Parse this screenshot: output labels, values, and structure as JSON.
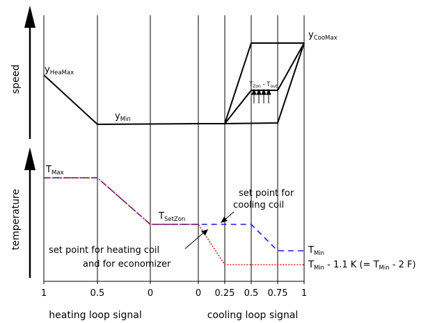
{
  "speed_axis_label": "speed",
  "temperature_axis_label": "temperature",
  "labels": {
    "y_hea_max": {
      "main": "y",
      "sub": "HeaMax"
    },
    "y_min": {
      "main": "y",
      "sub": "Min"
    },
    "y_coo_max": {
      "main": "y",
      "sub": "CooMax"
    },
    "t_zon_out": {
      "t1": "T",
      "s1": "Zon",
      "mid": " - T",
      "s2": "out"
    },
    "t_max": {
      "main": "T",
      "sub": "Max"
    },
    "t_set_zon": {
      "main": "T",
      "sub": "SetZon"
    },
    "t_min": {
      "main": "T",
      "sub": "Min"
    },
    "t_min_offset": {
      "a": "T",
      "as": "Min",
      "b": " - 1.1 K (= T",
      "bs": "Min",
      "c": " - 2 F)"
    }
  },
  "annotations": {
    "cooling_setpoint_line1": "set point for",
    "cooling_setpoint_line2": "cooling coil",
    "heating_setpoint_line1": "set point for heating coil",
    "heating_setpoint_line2": "and for economizer"
  },
  "heating_ticks": [
    "1",
    "0.5",
    "0"
  ],
  "cooling_ticks": [
    "0",
    "0.25",
    "0.5",
    "0.75",
    "1"
  ],
  "bottom_labels": {
    "heating": "heating loop signal",
    "cooling": "cooling loop signal"
  },
  "colors": {
    "cooling_setpoint": "#1a1adb",
    "heating_setpoint": "#e01a1a",
    "combined_setpoint": "#7a2a7a",
    "lines": "#000000"
  }
}
